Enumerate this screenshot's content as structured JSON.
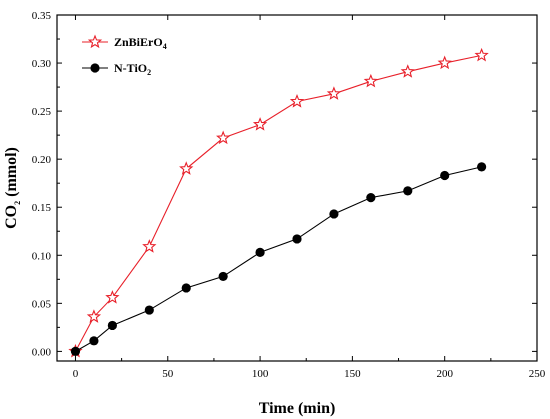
{
  "chart_data": {
    "type": "line",
    "xlabel": "Time (min)",
    "ylabel": "CO2 (mmol)",
    "xlim": [
      -10,
      250
    ],
    "ylim": [
      -0.01,
      0.35
    ],
    "xticks": [
      0,
      50,
      100,
      150,
      200,
      250
    ],
    "yticks": [
      0.0,
      0.05,
      0.1,
      0.15,
      0.2,
      0.25,
      0.3,
      0.35
    ],
    "ytick_labels": [
      "0.00",
      "0.05",
      "0.10",
      "0.15",
      "0.20",
      "0.25",
      "0.30",
      "0.35"
    ],
    "grid": false,
    "legend_position": "top-left",
    "series": [
      {
        "name": "ZnBiErO4",
        "name_main": "ZnBiErO",
        "name_sub": "4",
        "color": "#e8202a",
        "marker": "open-star",
        "x": [
          0,
          10,
          20,
          40,
          60,
          80,
          100,
          120,
          140,
          160,
          180,
          200,
          220
        ],
        "y": [
          0.0,
          0.036,
          0.056,
          0.109,
          0.19,
          0.222,
          0.236,
          0.26,
          0.268,
          0.281,
          0.291,
          0.3,
          0.308
        ]
      },
      {
        "name": "N-TiO2",
        "name_main": "N-TiO",
        "name_sub": "2",
        "color": "#000000",
        "marker": "filled-circle",
        "x": [
          0,
          10,
          20,
          40,
          60,
          80,
          100,
          120,
          140,
          160,
          180,
          200,
          220
        ],
        "y": [
          0.0,
          0.011,
          0.027,
          0.043,
          0.066,
          0.078,
          0.103,
          0.117,
          0.143,
          0.16,
          0.167,
          0.183,
          0.192
        ]
      }
    ]
  }
}
